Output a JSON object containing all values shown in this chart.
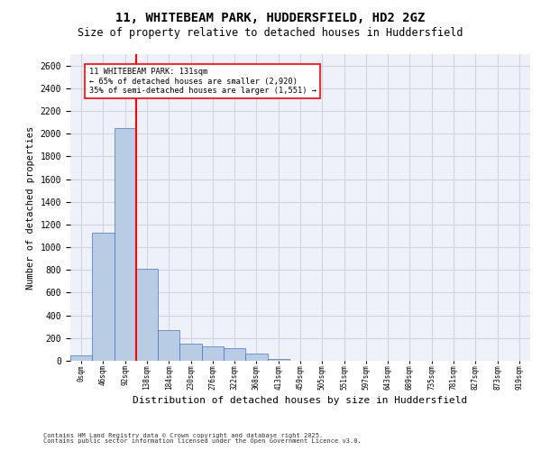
{
  "title_line1": "11, WHITEBEAM PARK, HUDDERSFIELD, HD2 2GZ",
  "title_line2": "Size of property relative to detached houses in Huddersfield",
  "xlabel": "Distribution of detached houses by size in Huddersfield",
  "ylabel": "Number of detached properties",
  "footnote": "Contains HM Land Registry data © Crown copyright and database right 2025.\nContains public sector information licensed under the Open Government Licence v3.0.",
  "bar_labels": [
    "0sqm",
    "46sqm",
    "92sqm",
    "138sqm",
    "184sqm",
    "230sqm",
    "276sqm",
    "322sqm",
    "368sqm",
    "413sqm",
    "459sqm",
    "505sqm",
    "551sqm",
    "597sqm",
    "643sqm",
    "689sqm",
    "735sqm",
    "781sqm",
    "827sqm",
    "873sqm",
    "919sqm"
  ],
  "bar_values": [
    50,
    1130,
    2050,
    810,
    270,
    150,
    130,
    110,
    60,
    15,
    0,
    0,
    0,
    0,
    0,
    0,
    0,
    0,
    0,
    0,
    0
  ],
  "bar_color": "#b8cce4",
  "bar_edge_color": "#4472c4",
  "grid_color": "#cdd5e3",
  "background_color": "#eef2f8",
  "vline_color": "red",
  "vline_position": 2.5,
  "annotation_text": "11 WHITEBEAM PARK: 131sqm\n← 65% of detached houses are smaller (2,920)\n35% of semi-detached houses are larger (1,551) →",
  "ylim": [
    0,
    2700
  ],
  "yticks": [
    0,
    200,
    400,
    600,
    800,
    1000,
    1200,
    1400,
    1600,
    1800,
    2000,
    2200,
    2400,
    2600
  ]
}
